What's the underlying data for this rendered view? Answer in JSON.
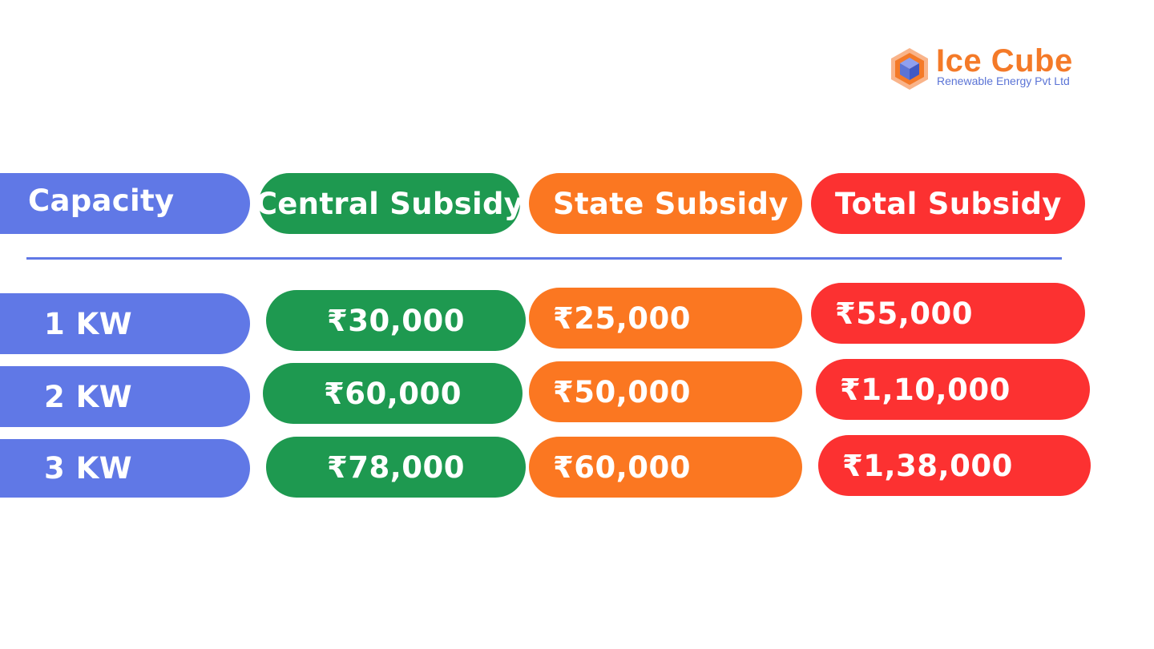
{
  "logo": {
    "title": "Ice Cube",
    "subtitle": "Renewable Energy Pvt Ltd",
    "icon": "cube-icon"
  },
  "colors": {
    "capacity": "#6078e6",
    "central": "#1e9950",
    "state": "#fb7721",
    "total": "#fc3131",
    "divider": "#6078e6",
    "brand_orange": "#f47a28",
    "brand_blue": "#5b74d6"
  },
  "headers": {
    "capacity": "Capacity",
    "central": "Central Subsidy",
    "state": "State Subsidy",
    "total": "Total Subsidy"
  },
  "rows": [
    {
      "capacity": "1 KW",
      "central": "₹30,000",
      "state": "₹25,000",
      "total": "₹55,000"
    },
    {
      "capacity": "2 KW",
      "central": "₹60,000",
      "state": "₹50,000",
      "total": "₹1,10,000"
    },
    {
      "capacity": "3 KW",
      "central": "₹78,000",
      "state": "₹60,000",
      "total": "₹1,38,000"
    }
  ]
}
